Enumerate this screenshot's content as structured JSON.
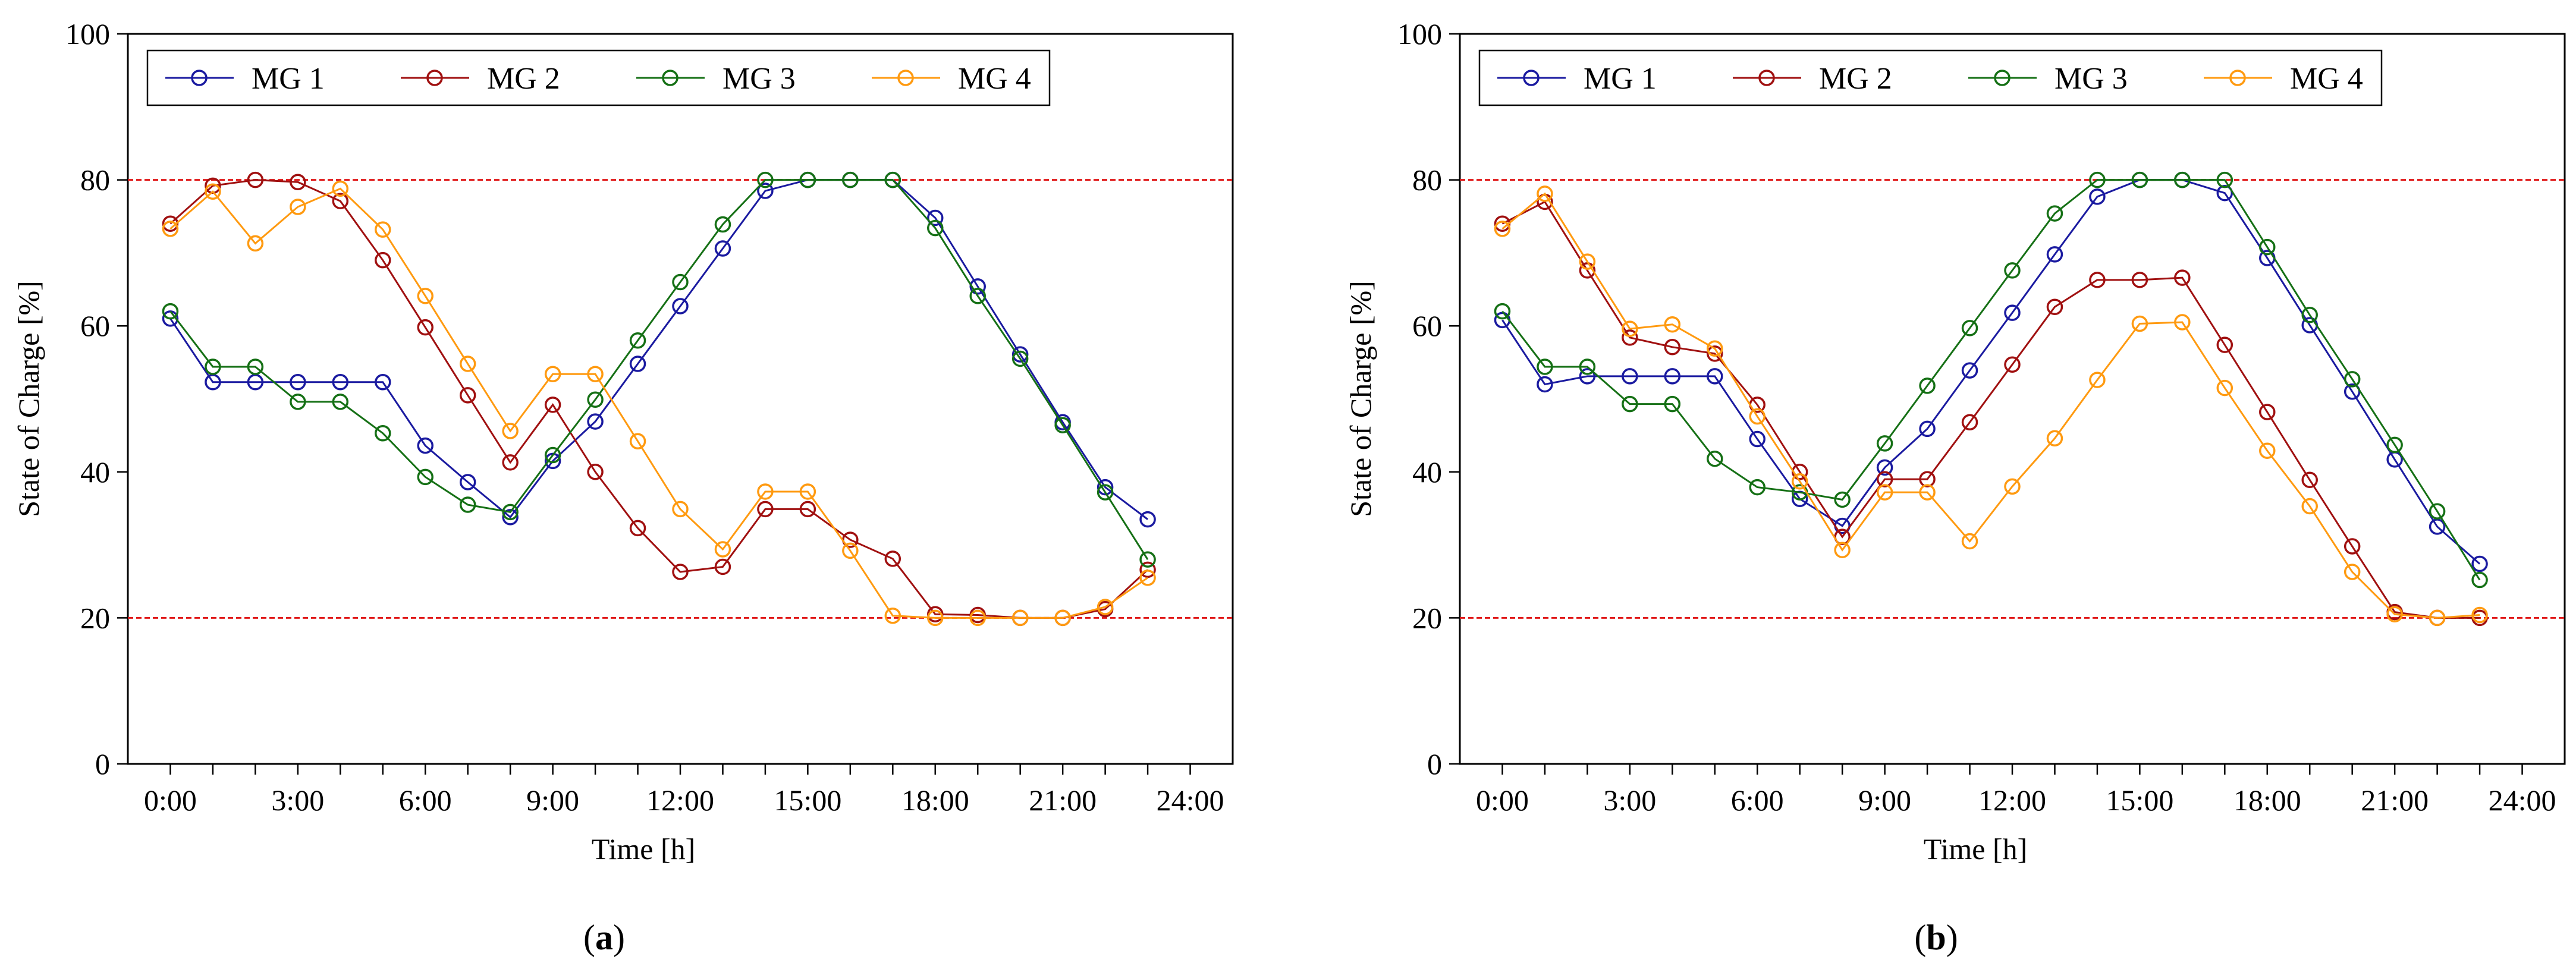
{
  "colors": {
    "MG 1": "#1a1aa0",
    "MG 2": "#a01010",
    "MG 3": "#157015",
    "MG 4": "#ff9a10",
    "reference": "#e01818"
  },
  "chart_data": [
    {
      "type": "line",
      "panel": "a",
      "caption_open": "(",
      "caption_close": ")",
      "xlabel": "Time [h]",
      "ylabel": "State of Charge [%]",
      "xlim": [
        -1,
        25
      ],
      "ylim": [
        0,
        100
      ],
      "xticks": [
        0,
        3,
        6,
        9,
        12,
        15,
        18,
        21,
        24
      ],
      "xtick_labels": [
        "0:00",
        "3:00",
        "6:00",
        "9:00",
        "12:00",
        "15:00",
        "18:00",
        "21:00",
        "24:00"
      ],
      "yticks": [
        0,
        20,
        40,
        60,
        80,
        100
      ],
      "ytick_labels": [
        "0",
        "20",
        "40",
        "60",
        "80",
        "100"
      ],
      "reference_lines": [
        80,
        20
      ],
      "legend_position": "top-left",
      "x": [
        0,
        1,
        2,
        3,
        4,
        5,
        6,
        7,
        8,
        9,
        10,
        11,
        12,
        13,
        14,
        15,
        16,
        17,
        18,
        19,
        20,
        21,
        22,
        23
      ],
      "series": [
        {
          "name": "MG 1",
          "values": [
            61,
            52.3,
            52.3,
            52.3,
            52.3,
            52.3,
            43.6,
            38.6,
            33.8,
            41.5,
            46.9,
            54.8,
            62.7,
            70.6,
            78.5,
            80,
            80,
            80,
            74.8,
            65.4,
            56.1,
            46.8,
            37.9,
            33.5
          ]
        },
        {
          "name": "MG 2",
          "values": [
            74,
            79.2,
            80,
            79.7,
            77.1,
            69,
            59.8,
            50.5,
            41.3,
            49.2,
            40,
            32.3,
            26.3,
            27,
            34.9,
            34.9,
            30.7,
            28.1,
            20.5,
            20.4,
            20,
            20,
            21.2,
            26.6
          ]
        },
        {
          "name": "MG 3",
          "values": [
            62,
            54.4,
            54.4,
            49.6,
            49.6,
            45.3,
            39.3,
            35.5,
            34.5,
            42.3,
            49.9,
            58,
            66,
            73.9,
            80,
            80,
            80,
            80,
            73.4,
            64.1,
            55.5,
            46.4,
            37.2,
            28
          ]
        },
        {
          "name": "MG 4",
          "values": [
            73.3,
            78.4,
            71.3,
            76.3,
            78.8,
            73.2,
            64.1,
            54.8,
            45.6,
            53.4,
            53.4,
            44.2,
            34.9,
            29.4,
            37.3,
            37.3,
            29.2,
            20.3,
            20,
            20,
            20,
            20,
            21.5,
            25.5
          ]
        }
      ]
    },
    {
      "type": "line",
      "panel": "b",
      "caption_open": "(",
      "caption_close": ")",
      "xlabel": "Time [h]",
      "ylabel": "State of Charge [%]",
      "xlim": [
        -1,
        25
      ],
      "ylim": [
        0,
        100
      ],
      "xticks": [
        0,
        3,
        6,
        9,
        12,
        15,
        18,
        21,
        24
      ],
      "xtick_labels": [
        "0:00",
        "3:00",
        "6:00",
        "9:00",
        "12:00",
        "15:00",
        "18:00",
        "21:00",
        "24:00"
      ],
      "yticks": [
        0,
        20,
        40,
        60,
        80,
        100
      ],
      "ytick_labels": [
        "0",
        "20",
        "40",
        "60",
        "80",
        "100"
      ],
      "reference_lines": [
        80,
        20
      ],
      "legend_position": "top-left",
      "x": [
        0,
        1,
        2,
        3,
        4,
        5,
        6,
        7,
        8,
        9,
        10,
        11,
        12,
        13,
        14,
        15,
        16,
        17,
        18,
        19,
        20,
        21,
        22,
        23
      ],
      "series": [
        {
          "name": "MG 1",
          "values": [
            60.8,
            52,
            53.1,
            53.1,
            53.1,
            53.1,
            44.5,
            36.3,
            32.6,
            40.6,
            45.9,
            53.9,
            61.8,
            69.8,
            77.7,
            80,
            80,
            78.2,
            69.3,
            60.1,
            51,
            41.7,
            32.5,
            27.4
          ]
        },
        {
          "name": "MG 2",
          "values": [
            74,
            77,
            67.6,
            58.4,
            57.1,
            56.2,
            49.2,
            40,
            31.1,
            39,
            39,
            46.8,
            54.7,
            62.6,
            66.3,
            66.3,
            66.6,
            57.4,
            48.2,
            38.9,
            29.8,
            20.8,
            20,
            20
          ]
        },
        {
          "name": "MG 3",
          "values": [
            62,
            54.4,
            54.4,
            49.3,
            49.3,
            41.8,
            37.9,
            37.2,
            36.2,
            43.9,
            51.8,
            59.7,
            67.6,
            75.4,
            80,
            80,
            80,
            80,
            70.8,
            61.5,
            52.7,
            43.7,
            34.6,
            25.2
          ]
        },
        {
          "name": "MG 4",
          "values": [
            73.3,
            78.1,
            68.8,
            59.6,
            60.2,
            56.9,
            47.6,
            38.7,
            29.3,
            37.2,
            37.2,
            30.5,
            38,
            44.6,
            52.6,
            60.3,
            60.5,
            51.5,
            42.9,
            35.3,
            26.3,
            20.5,
            20,
            20.4
          ]
        }
      ]
    }
  ]
}
